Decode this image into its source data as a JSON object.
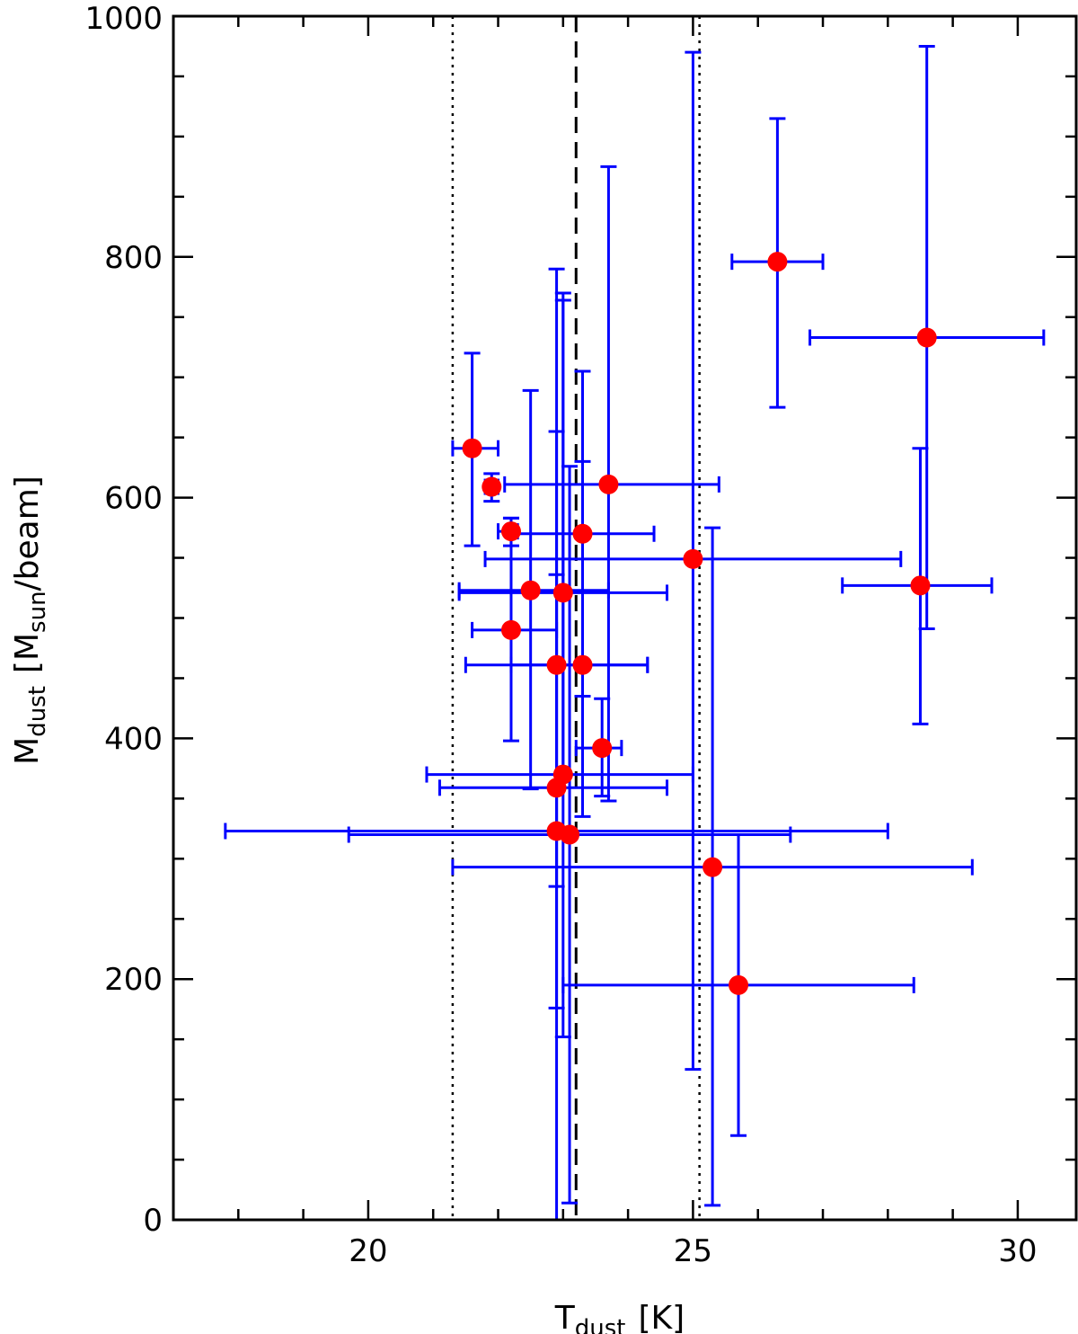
{
  "chart_data": {
    "type": "scatter",
    "xlabel": "T",
    "xlabel_sub": "dust",
    "xlabel_unit": "[K]",
    "ylabel": "M",
    "ylabel_sub": "dust",
    "ylabel_unit_pre": "[M",
    "ylabel_unit_sub": "sun",
    "ylabel_unit_post": "/beam]",
    "xlim": [
      17.0,
      30.9
    ],
    "ylim": [
      0,
      1000
    ],
    "x_ticks": [
      20,
      25,
      30
    ],
    "x_minor_step": 1,
    "y_ticks": [
      0,
      200,
      400,
      600,
      800,
      1000
    ],
    "y_minor_step": 50,
    "marker_color": "#ff0000",
    "errorbar_color": "#0000ff",
    "reference_lines": [
      {
        "x": 21.3,
        "style": "dotted"
      },
      {
        "x": 23.2,
        "style": "dashed"
      },
      {
        "x": 25.1,
        "style": "dotted"
      }
    ],
    "points": [
      {
        "x": 21.6,
        "y": 641,
        "xlo": 21.3,
        "xhi": 22.0,
        "ylo": 560,
        "yhi": 720
      },
      {
        "x": 21.9,
        "y": 609,
        "xlo": 21.8,
        "xhi": 22.0,
        "ylo": 597,
        "yhi": 620
      },
      {
        "x": 22.2,
        "y": 572,
        "xlo": 22.0,
        "xhi": 22.3,
        "ylo": 560,
        "yhi": 583
      },
      {
        "x": 23.3,
        "y": 570,
        "xlo": 22.2,
        "xhi": 24.4,
        "ylo": 435,
        "yhi": 705
      },
      {
        "x": 23.7,
        "y": 611,
        "xlo": 22.1,
        "xhi": 25.4,
        "ylo": 348,
        "yhi": 875
      },
      {
        "x": 22.5,
        "y": 523,
        "xlo": 21.4,
        "xhi": 23.7,
        "ylo": 358,
        "yhi": 689
      },
      {
        "x": 23.0,
        "y": 521,
        "xlo": 21.4,
        "xhi": 24.6,
        "ylo": 373,
        "yhi": 770
      },
      {
        "x": 22.2,
        "y": 490,
        "xlo": 21.6,
        "xhi": 22.9,
        "ylo": 398,
        "yhi": 583
      },
      {
        "x": 22.9,
        "y": 461,
        "xlo": 21.5,
        "xhi": 24.3,
        "ylo": 277,
        "yhi": 655
      },
      {
        "x": 23.3,
        "y": 461,
        "xlo": 22.2,
        "xhi": 24.3,
        "ylo": 335,
        "yhi": 630
      },
      {
        "x": 23.6,
        "y": 392,
        "xlo": 23.2,
        "xhi": 23.9,
        "ylo": 352,
        "yhi": 433
      },
      {
        "x": 23.0,
        "y": 370,
        "xlo": 20.9,
        "xhi": 25.0,
        "ylo": 152,
        "yhi": 764
      },
      {
        "x": 22.9,
        "y": 359,
        "xlo": 21.1,
        "xhi": 24.6,
        "ylo": 176,
        "yhi": 536
      },
      {
        "x": 22.9,
        "y": 323,
        "xlo": 17.8,
        "xhi": 28.0,
        "ylo": 0,
        "yhi": 790
      },
      {
        "x": 23.1,
        "y": 320,
        "xlo": 19.7,
        "xhi": 26.5,
        "ylo": 14,
        "yhi": 626
      },
      {
        "x": 25.0,
        "y": 549,
        "xlo": 21.8,
        "xhi": 28.2,
        "ylo": 125,
        "yhi": 970
      },
      {
        "x": 25.3,
        "y": 293,
        "xlo": 21.3,
        "xhi": 29.3,
        "ylo": 12,
        "yhi": 575
      },
      {
        "x": 25.7,
        "y": 195,
        "xlo": 23.0,
        "xhi": 28.4,
        "ylo": 70,
        "yhi": 320
      },
      {
        "x": 26.3,
        "y": 796,
        "xlo": 25.6,
        "xhi": 27.0,
        "ylo": 675,
        "yhi": 915
      },
      {
        "x": 28.6,
        "y": 733,
        "xlo": 26.8,
        "xhi": 30.4,
        "ylo": 491,
        "yhi": 975
      },
      {
        "x": 28.5,
        "y": 527,
        "xlo": 27.3,
        "xhi": 29.6,
        "ylo": 412,
        "yhi": 641
      }
    ]
  }
}
